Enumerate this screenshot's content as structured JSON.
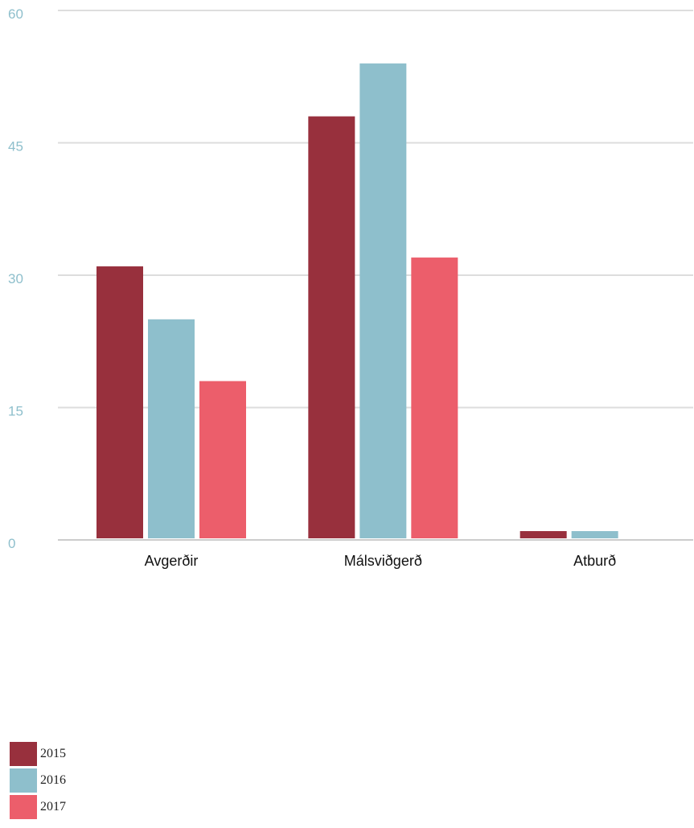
{
  "chart_data": {
    "type": "bar",
    "categories": [
      "Avgerðir",
      "Málsviðgerð",
      "Atburð"
    ],
    "series": [
      {
        "name": "2015",
        "color": "#98303d",
        "values": [
          31,
          48,
          1
        ]
      },
      {
        "name": "2016",
        "color": "#8ebfcc",
        "values": [
          25,
          54,
          1
        ]
      },
      {
        "name": "2017",
        "color": "#ec5e6b",
        "values": [
          18,
          32,
          0
        ]
      }
    ],
    "ylim": [
      0,
      60
    ],
    "yticks": [
      0,
      15,
      30,
      45,
      60
    ],
    "grid": true,
    "legend_position": "bottom-left",
    "colors": {
      "tick_label": "#8ebfcc",
      "grid": "#dddddd",
      "baseline": "#cccccc"
    }
  }
}
